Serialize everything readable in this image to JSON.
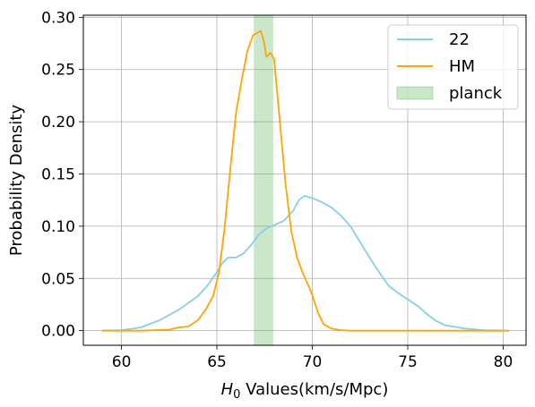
{
  "chart_data": {
    "type": "line",
    "title": "",
    "xlabel_symbol": "H",
    "xlabel_subscript": "0",
    "xlabel_rest": " Values(km/s/Mpc)",
    "ylabel": "Probability Density",
    "xlim": [
      58.0,
      81.2
    ],
    "ylim": [
      -0.014,
      0.302
    ],
    "xticks": [
      60,
      65,
      70,
      75,
      80
    ],
    "xtick_labels": [
      "60",
      "65",
      "70",
      "75",
      "80"
    ],
    "yticks": [
      0.0,
      0.05,
      0.1,
      0.15,
      0.2,
      0.25,
      0.3
    ],
    "ytick_labels": [
      "0.00",
      "0.05",
      "0.10",
      "0.15",
      "0.20",
      "0.25",
      "0.30"
    ],
    "grid": true,
    "legend_position": "top-right",
    "band": {
      "name": "planck",
      "x_range": [
        66.93,
        67.95
      ],
      "color": "#2ca02c",
      "opacity": 0.25
    },
    "series": [
      {
        "name": "22",
        "color": "#87ceeb",
        "x": [
          59.0,
          60.0,
          61.0,
          62.0,
          63.0,
          64.0,
          64.5,
          65.0,
          65.3,
          65.6,
          66.0,
          66.4,
          66.8,
          67.2,
          67.6,
          68.0,
          68.5,
          69.0,
          69.3,
          69.6,
          70.0,
          70.5,
          71.0,
          71.5,
          72.0,
          72.5,
          73.0,
          73.5,
          74.0,
          74.5,
          75.0,
          75.5,
          76.0,
          76.5,
          77.0,
          78.0,
          79.0,
          80.3
        ],
        "y": [
          0.0,
          0.0005,
          0.003,
          0.01,
          0.02,
          0.033,
          0.043,
          0.056,
          0.065,
          0.07,
          0.07,
          0.074,
          0.082,
          0.092,
          0.098,
          0.101,
          0.105,
          0.115,
          0.125,
          0.129,
          0.127,
          0.123,
          0.118,
          0.11,
          0.1,
          0.085,
          0.07,
          0.056,
          0.043,
          0.036,
          0.03,
          0.024,
          0.016,
          0.009,
          0.005,
          0.002,
          0.0005,
          0.0
        ]
      },
      {
        "name": "HM",
        "color": "#ffa500",
        "x": [
          59.0,
          61.0,
          62.5,
          63.0,
          63.5,
          64.0,
          64.4,
          64.8,
          65.1,
          65.4,
          65.7,
          66.0,
          66.3,
          66.6,
          66.9,
          67.1,
          67.3,
          67.45,
          67.6,
          67.8,
          68.0,
          68.3,
          68.6,
          68.9,
          69.2,
          69.5,
          69.8,
          70.0,
          70.3,
          70.6,
          71.0,
          71.5,
          72.0,
          73.0,
          80.3
        ],
        "y": [
          0.0,
          0.0,
          0.001,
          0.003,
          0.004,
          0.01,
          0.02,
          0.033,
          0.055,
          0.098,
          0.155,
          0.208,
          0.24,
          0.268,
          0.283,
          0.285,
          0.287,
          0.278,
          0.262,
          0.266,
          0.26,
          0.2,
          0.14,
          0.095,
          0.07,
          0.055,
          0.043,
          0.034,
          0.017,
          0.006,
          0.002,
          0.0005,
          0.0,
          0.0,
          0.0
        ]
      }
    ]
  }
}
